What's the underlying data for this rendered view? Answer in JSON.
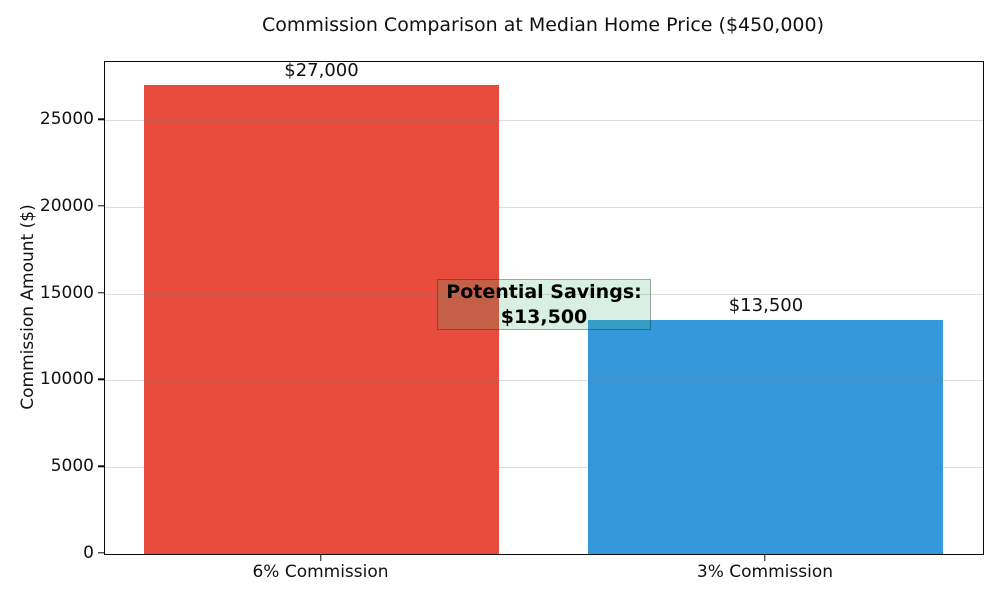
{
  "figure": {
    "title": "Commission Comparison at Median Home Price ($450,000)"
  },
  "chart_data": {
    "type": "bar",
    "title": "Commission Comparison at Median Home Price ($450,000)",
    "categories": [
      "6% Commission",
      "3% Commission"
    ],
    "values": [
      27000,
      13500
    ],
    "bar_labels": [
      "$27,000",
      "$13,500"
    ],
    "bar_colors": [
      "#e74c3c",
      "#3498db"
    ],
    "xlabel": "",
    "ylabel": "Commission Amount ($)",
    "ylim": [
      0,
      28350
    ],
    "yticks": [
      0,
      5000,
      10000,
      15000,
      20000,
      25000
    ],
    "grid": "horizontal",
    "gridline_color": "rgba(128,128,128,0.28)",
    "legend_position": "none",
    "annotation": {
      "lines": [
        "Potential Savings:",
        "$13,500"
      ],
      "bg_color": "rgba(60,179,113,0.2)",
      "border_color": "rgba(0,0,0,0.3)"
    }
  }
}
